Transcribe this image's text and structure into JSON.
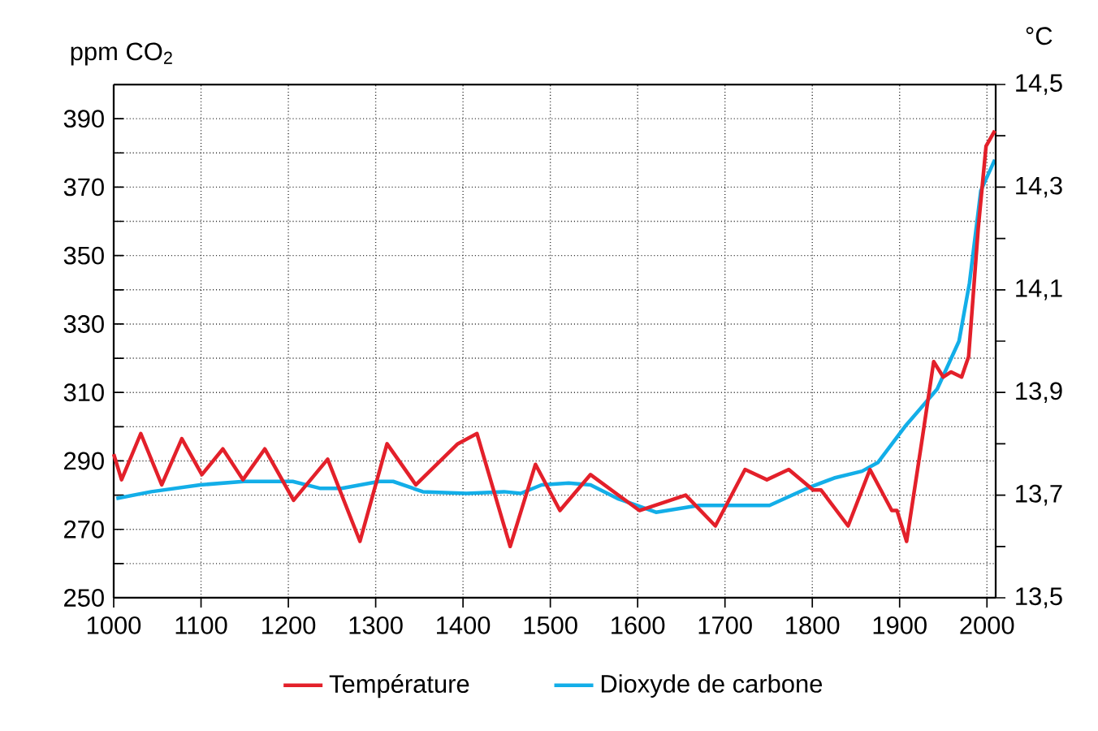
{
  "chart_data": {
    "type": "line",
    "xlabel": null,
    "ylabel": "ppm CO$_{2}$",
    "y2label": "°C",
    "xlim": [
      1000,
      2010
    ],
    "xticks": [
      1000,
      1100,
      1200,
      1300,
      1400,
      1500,
      1600,
      1700,
      1800,
      1900,
      2000
    ],
    "ylim": [
      250,
      400
    ],
    "yticks": [
      250,
      {
        "value": 260,
        "label": null
      },
      270,
      {
        "value": 280,
        "label": null
      },
      290,
      {
        "value": 300,
        "label": null
      },
      310,
      {
        "value": 320,
        "label": null
      },
      330,
      {
        "value": 340,
        "label": null
      },
      350,
      {
        "value": 360,
        "label": null
      },
      370,
      {
        "value": 380,
        "label": null
      },
      390,
      {
        "value": 400,
        "label": null
      }
    ],
    "y2lim": [
      13.5,
      14.5
    ],
    "y2ticks": [
      {
        "value": 13.5,
        "label": "13,5"
      },
      {
        "value": 13.6,
        "label": null
      },
      {
        "value": 13.7,
        "label": "13,7"
      },
      {
        "value": 13.8,
        "label": null
      },
      {
        "value": 13.9,
        "label": "13,9"
      },
      {
        "value": 14.0,
        "label": null
      },
      {
        "value": 14.1,
        "label": "14,1"
      },
      {
        "value": 14.2,
        "label": null
      },
      {
        "value": 14.3,
        "label": "14,3"
      },
      {
        "value": 14.4,
        "label": null
      },
      {
        "value": 14.5,
        "label": "14,5"
      }
    ],
    "grid": true,
    "legend": "bottom",
    "line_style": "solid",
    "series": [
      {
        "name": "Température",
        "color": "#e3202a",
        "axis": "y2",
        "x": [
          1000,
          1009,
          1031,
          1055,
          1078,
          1101,
          1125,
          1148,
          1173,
          1206,
          1245,
          1282,
          1313,
          1346,
          1394,
          1416,
          1454,
          1483,
          1511,
          1546,
          1602,
          1655,
          1689,
          1723,
          1748,
          1773,
          1801,
          1810,
          1841,
          1866,
          1891,
          1897,
          1908,
          1925,
          1939,
          1950,
          1959,
          1971,
          1979,
          1990,
          1999,
          2009
        ],
        "values": [
          13.78,
          13.73,
          13.82,
          13.72,
          13.81,
          13.74,
          13.79,
          13.73,
          13.79,
          13.69,
          13.77,
          13.61,
          13.8,
          13.72,
          13.8,
          13.82,
          13.6,
          13.76,
          13.67,
          13.74,
          13.67,
          13.7,
          13.64,
          13.75,
          13.73,
          13.75,
          13.71,
          13.71,
          13.64,
          13.75,
          13.67,
          13.67,
          13.61,
          13.8,
          13.96,
          13.93,
          13.94,
          13.93,
          13.97,
          14.22,
          14.38,
          14.41
        ]
      },
      {
        "name": "Dioxyde de carbone",
        "color": "#13aee8",
        "x": [
          1003,
          1043,
          1099,
          1149,
          1186,
          1205,
          1236,
          1261,
          1304,
          1320,
          1354,
          1404,
          1447,
          1466,
          1490,
          1521,
          1546,
          1577,
          1621,
          1670,
          1751,
          1794,
          1825,
          1857,
          1875,
          1906,
          1943,
          1968,
          1980,
          1993,
          2009
        ],
        "values": [
          279,
          281,
          283,
          284,
          284,
          284,
          282,
          282,
          284,
          284,
          281,
          280.5,
          281,
          280.5,
          283,
          283.5,
          283,
          279,
          275,
          277,
          277,
          282,
          285,
          287,
          289.5,
          300,
          311,
          325,
          342,
          369,
          378
        ]
      }
    ]
  }
}
